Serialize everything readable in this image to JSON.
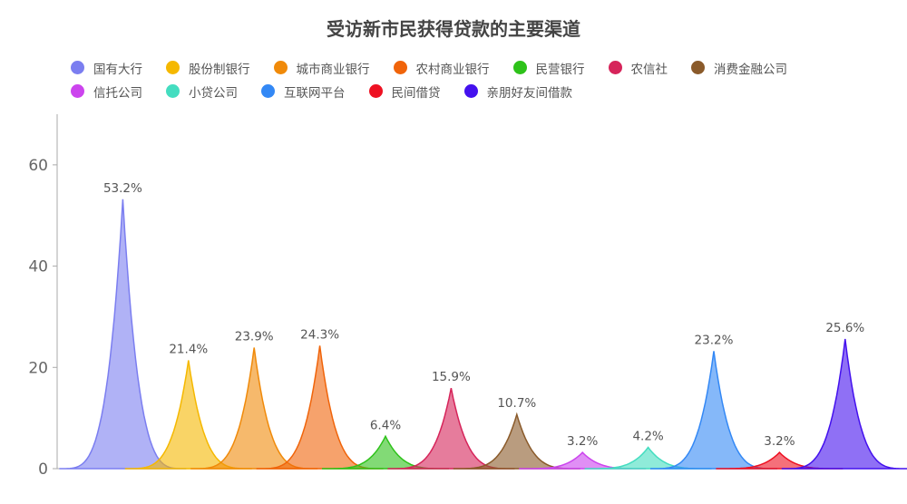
{
  "chart_data": {
    "type": "area",
    "title": "受访新市民获得贷款的主要渠道",
    "xlabel": "",
    "ylabel": "",
    "ylim": [
      0,
      70
    ],
    "yticks": [
      0,
      20,
      40,
      60
    ],
    "grid": false,
    "legend_position": "top",
    "series": [
      {
        "name": "国有大行",
        "value": 53.2,
        "label": "53.2%",
        "color": "#7b7ef0"
      },
      {
        "name": "股份制银行",
        "value": 21.4,
        "label": "21.4%",
        "color": "#f5b800"
      },
      {
        "name": "城市商业银行",
        "value": 23.9,
        "label": "23.9%",
        "color": "#f08a0a"
      },
      {
        "name": "农村商业银行",
        "value": 24.3,
        "label": "24.3%",
        "color": "#f0640a"
      },
      {
        "name": "民营银行",
        "value": 6.4,
        "label": "6.4%",
        "color": "#2ec21a"
      },
      {
        "name": "农信社",
        "value": 15.9,
        "label": "15.9%",
        "color": "#d6245a"
      },
      {
        "name": "消费金融公司",
        "value": 10.7,
        "label": "10.7%",
        "color": "#8a5a2a"
      },
      {
        "name": "信托公司",
        "value": 3.2,
        "label": "3.2%",
        "color": "#cc44ee"
      },
      {
        "name": "小贷公司",
        "value": 4.2,
        "label": "4.2%",
        "color": "#44ddc0"
      },
      {
        "name": "互联网平台",
        "value": 23.2,
        "label": "23.2%",
        "color": "#3388f5"
      },
      {
        "name": "民间借贷",
        "value": 3.2,
        "label": "3.2%",
        "color": "#ee1122"
      },
      {
        "name": "亲朋好友间借款",
        "value": 25.6,
        "label": "25.6%",
        "color": "#4411ee"
      }
    ]
  }
}
